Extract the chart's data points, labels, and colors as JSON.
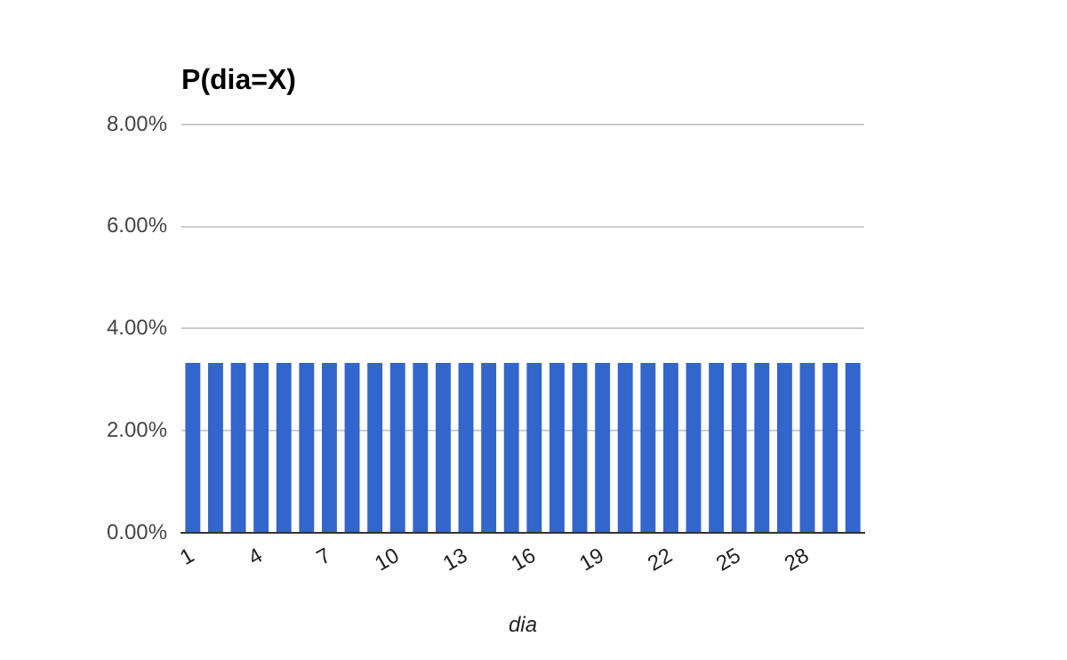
{
  "chart_data": {
    "type": "bar",
    "title": "P(dia=X)",
    "xlabel": "dia",
    "categories": [
      "1",
      null,
      null,
      "4",
      null,
      null,
      "7",
      null,
      null,
      "10",
      null,
      null,
      "13",
      null,
      null,
      "16",
      null,
      null,
      "19",
      null,
      null,
      "22",
      null,
      null,
      "25",
      null,
      null,
      "28",
      null,
      null
    ],
    "values": [
      3.33,
      3.33,
      3.33,
      3.33,
      3.33,
      3.33,
      3.33,
      3.33,
      3.33,
      3.33,
      3.33,
      3.33,
      3.33,
      3.33,
      3.33,
      3.33,
      3.33,
      3.33,
      3.33,
      3.33,
      3.33,
      3.33,
      3.33,
      3.33,
      3.33,
      3.33,
      3.33,
      3.33,
      3.33,
      3.33
    ],
    "color": "#3366cc",
    "ylim": [
      0,
      8
    ],
    "yticks": [
      {
        "value": 0,
        "label": "0.00%"
      },
      {
        "value": 2,
        "label": "2.00%"
      },
      {
        "value": 4,
        "label": "4.00%"
      },
      {
        "value": 6,
        "label": "6.00%"
      },
      {
        "value": 8,
        "label": "8.00%"
      }
    ],
    "grid": "y",
    "legend": false
  }
}
